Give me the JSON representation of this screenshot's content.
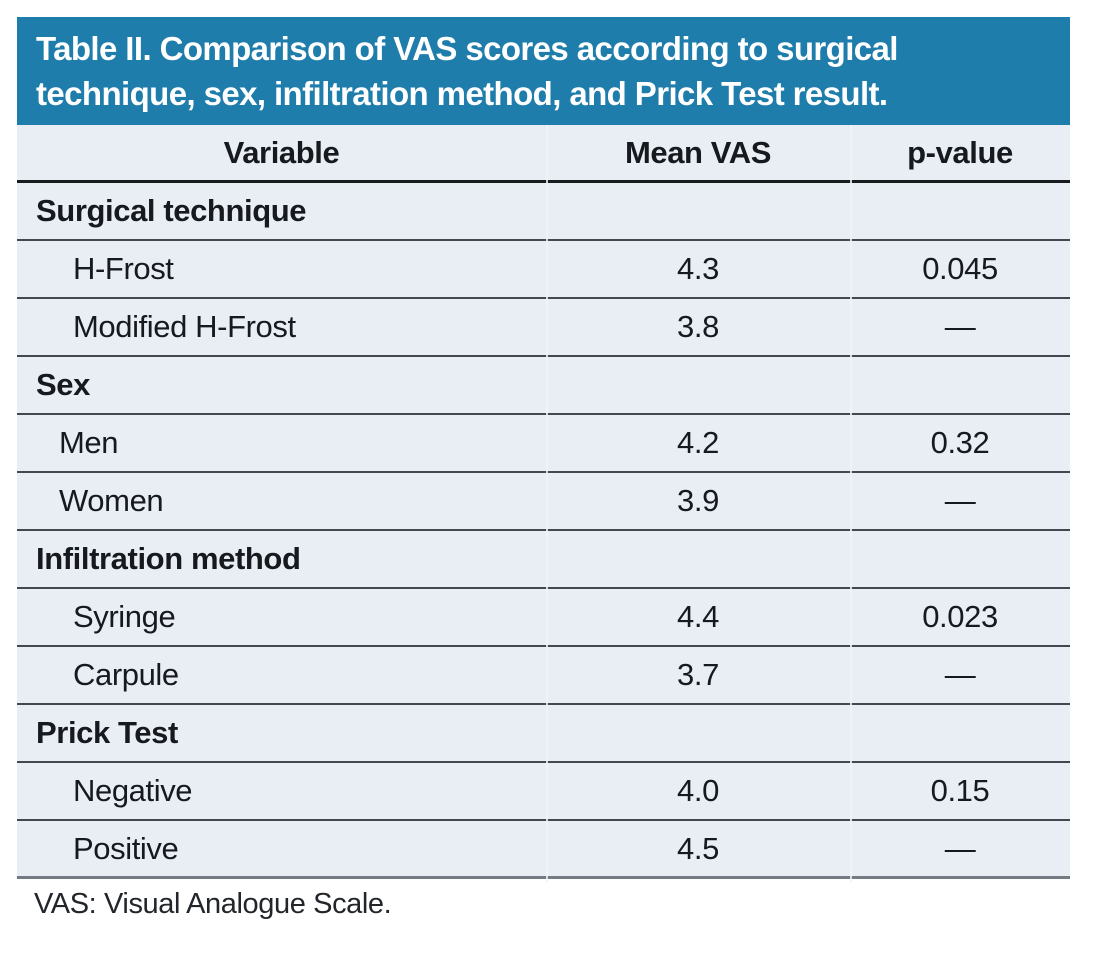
{
  "title": {
    "line1": "Table II. Comparison of VAS scores according to surgical",
    "line2": "technique, sex, infiltration method, and Prick Test result."
  },
  "columns": [
    "Variable",
    "Mean VAS",
    "p-value"
  ],
  "sections": [
    {
      "header": "Surgical technique",
      "rows": [
        {
          "label": "H-Frost",
          "mean_vas": "4.3",
          "p_value": "0.045"
        },
        {
          "label": "Modified H-Frost",
          "mean_vas": "3.8",
          "p_value": "—"
        }
      ]
    },
    {
      "header": "Sex",
      "rows": [
        {
          "label": "Men",
          "mean_vas": "4.2",
          "p_value": "0.32"
        },
        {
          "label": "Women",
          "mean_vas": "3.9",
          "p_value": "—"
        }
      ]
    },
    {
      "header": "Infiltration method",
      "rows": [
        {
          "label": "Syringe",
          "mean_vas": "4.4",
          "p_value": "0.023"
        },
        {
          "label": "Carpule",
          "mean_vas": "3.7",
          "p_value": "—"
        }
      ]
    },
    {
      "header": "Prick Test",
      "rows": [
        {
          "label": "Negative",
          "mean_vas": "4.0",
          "p_value": "0.15"
        },
        {
          "label": "Positive",
          "mean_vas": "4.5",
          "p_value": "—"
        }
      ]
    }
  ],
  "footnote": "VAS: Visual Analogue Scale.",
  "colors": {
    "title_bar_blue": "#1e7dab",
    "row_background": "#e9eef5",
    "header_rule": "#191c1f",
    "row_rule": "#43484e",
    "bottom_rule": "#757b82"
  }
}
